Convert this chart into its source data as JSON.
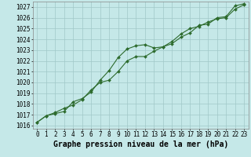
{
  "title": "Graphe pression niveau de la mer (hPa)",
  "background_color": "#c5e8e8",
  "grid_color": "#a0c8c8",
  "line_color": "#2d6b2d",
  "marker_color": "#2d6b2d",
  "ylim": [
    1015.7,
    1027.5
  ],
  "xlim": [
    -0.5,
    23.5
  ],
  "yticks": [
    1016,
    1017,
    1018,
    1019,
    1020,
    1021,
    1022,
    1023,
    1024,
    1025,
    1026,
    1027
  ],
  "xticks": [
    0,
    1,
    2,
    3,
    4,
    5,
    6,
    7,
    8,
    9,
    10,
    11,
    12,
    13,
    14,
    15,
    16,
    17,
    18,
    19,
    20,
    21,
    22,
    23
  ],
  "series1": [
    1016.3,
    1016.9,
    1017.1,
    1017.3,
    1018.2,
    1018.5,
    1019.1,
    1020.2,
    1021.1,
    1022.3,
    1023.1,
    1023.4,
    1023.5,
    1023.2,
    1023.3,
    1023.6,
    1024.2,
    1024.6,
    1025.3,
    1025.4,
    1026.0,
    1026.1,
    1027.1,
    1027.3
  ],
  "series2": [
    1016.3,
    1016.9,
    1017.2,
    1017.6,
    1017.9,
    1018.4,
    1019.3,
    1020.0,
    1020.2,
    1021.0,
    1022.0,
    1022.4,
    1022.4,
    1022.9,
    1023.3,
    1023.8,
    1024.5,
    1025.0,
    1025.2,
    1025.6,
    1025.9,
    1026.0,
    1026.8,
    1027.2
  ],
  "tick_fontsize": 5.5,
  "title_fontsize": 7.0
}
